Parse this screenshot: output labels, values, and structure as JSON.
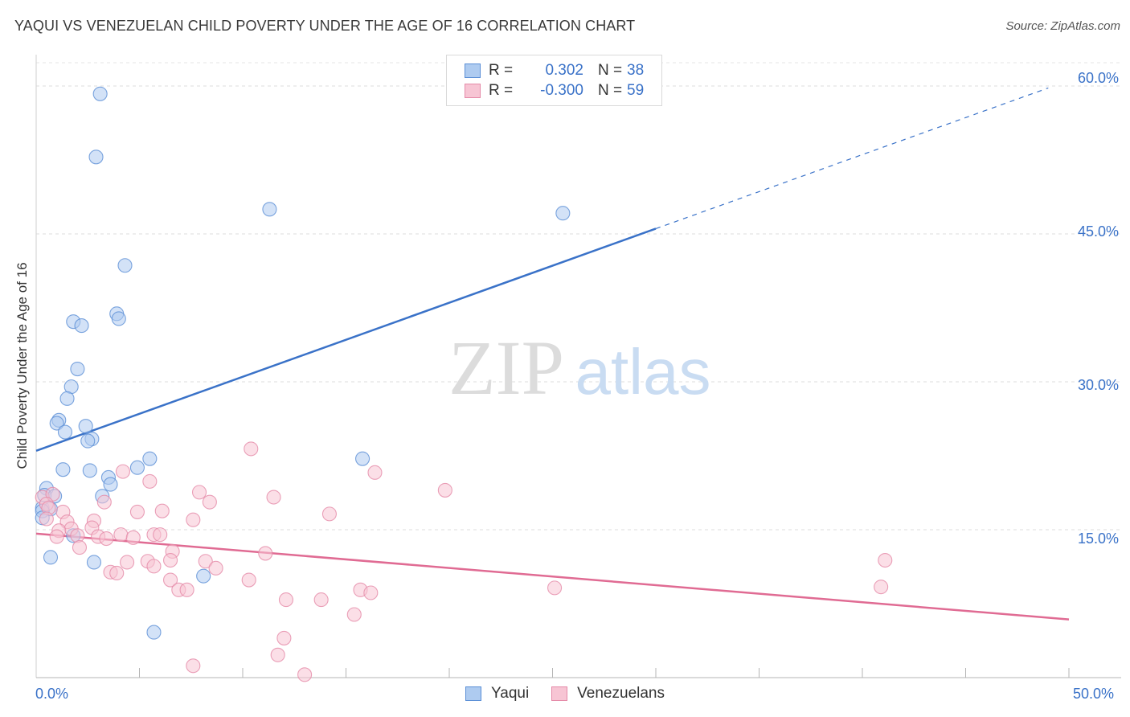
{
  "title": "YAQUI VS VENEZUELAN CHILD POVERTY UNDER THE AGE OF 16 CORRELATION CHART",
  "source": "Source: ZipAtlas.com",
  "watermark": {
    "zip": "ZIP",
    "atlas": "atlas"
  },
  "legend_top": {
    "rows": [
      {
        "r_label": "R =",
        "r_value": "0.302",
        "n_label": "N =",
        "n_value": "38",
        "color": "#aecbf0",
        "border": "#5b8fd6"
      },
      {
        "r_label": "R =",
        "r_value": "-0.300",
        "n_label": "N =",
        "n_value": "59",
        "color": "#f7c5d4",
        "border": "#e58aa8"
      }
    ]
  },
  "legend_bottom": {
    "items": [
      {
        "label": "Yaqui",
        "color": "#aecbf0",
        "border": "#5b8fd6"
      },
      {
        "label": "Venezuelans",
        "color": "#f7c5d4",
        "border": "#e58aa8"
      }
    ]
  },
  "axes": {
    "x_min_label": "0.0%",
    "x_max_label": "50.0%",
    "y_tick_labels": [
      "15.0%",
      "30.0%",
      "45.0%",
      "60.0%"
    ]
  },
  "chart_data": {
    "type": "scatter",
    "title": "YAQUI VS VENEZUELAN CHILD POVERTY UNDER THE AGE OF 16 CORRELATION CHART",
    "xlabel": "",
    "ylabel": "Child Poverty Under the Age of 16",
    "xlim": [
      0,
      50
    ],
    "ylim": [
      0,
      60
    ],
    "y_ticks": [
      15,
      30,
      45,
      60
    ],
    "grid": true,
    "series": [
      {
        "name": "Yaqui",
        "color": "#5b8fd6",
        "fill": "#aecbf0",
        "points": [
          [
            3.1,
            59.2
          ],
          [
            2.9,
            52.8
          ],
          [
            11.3,
            47.5
          ],
          [
            25.5,
            47.1
          ],
          [
            4.3,
            41.8
          ],
          [
            3.9,
            36.9
          ],
          [
            4.0,
            36.4
          ],
          [
            1.8,
            36.1
          ],
          [
            2.2,
            35.7
          ],
          [
            2.0,
            31.3
          ],
          [
            1.7,
            29.5
          ],
          [
            1.5,
            28.3
          ],
          [
            1.1,
            26.1
          ],
          [
            1.0,
            25.8
          ],
          [
            2.4,
            25.5
          ],
          [
            1.4,
            24.9
          ],
          [
            2.7,
            24.2
          ],
          [
            2.5,
            24.0
          ],
          [
            5.5,
            22.2
          ],
          [
            15.8,
            22.2
          ],
          [
            4.9,
            21.3
          ],
          [
            1.3,
            21.1
          ],
          [
            2.6,
            21.0
          ],
          [
            3.5,
            20.3
          ],
          [
            3.6,
            19.6
          ],
          [
            0.5,
            19.2
          ],
          [
            0.4,
            18.5
          ],
          [
            0.9,
            18.4
          ],
          [
            3.2,
            18.4
          ],
          [
            0.3,
            17.2
          ],
          [
            0.7,
            17.1
          ],
          [
            0.3,
            16.9
          ],
          [
            0.3,
            16.2
          ],
          [
            1.8,
            14.4
          ],
          [
            0.7,
            12.2
          ],
          [
            2.8,
            11.7
          ],
          [
            8.1,
            10.3
          ],
          [
            5.7,
            4.6
          ]
        ]
      },
      {
        "name": "Venezuelans",
        "color": "#e58aa8",
        "fill": "#f7c5d4",
        "points": [
          [
            10.4,
            23.2
          ],
          [
            4.2,
            20.9
          ],
          [
            16.4,
            20.8
          ],
          [
            5.5,
            19.9
          ],
          [
            19.8,
            19.0
          ],
          [
            7.9,
            18.8
          ],
          [
            0.3,
            18.3
          ],
          [
            0.8,
            18.6
          ],
          [
            11.5,
            18.3
          ],
          [
            3.3,
            17.8
          ],
          [
            8.4,
            17.8
          ],
          [
            0.5,
            17.6
          ],
          [
            0.6,
            17.2
          ],
          [
            1.3,
            16.8
          ],
          [
            6.1,
            16.9
          ],
          [
            4.9,
            16.8
          ],
          [
            14.2,
            16.6
          ],
          [
            0.5,
            16.1
          ],
          [
            7.6,
            16.0
          ],
          [
            2.8,
            15.9
          ],
          [
            1.5,
            15.8
          ],
          [
            1.7,
            15.1
          ],
          [
            2.7,
            15.2
          ],
          [
            1.1,
            14.9
          ],
          [
            1.0,
            14.3
          ],
          [
            2.0,
            14.4
          ],
          [
            4.1,
            14.5
          ],
          [
            5.7,
            14.5
          ],
          [
            6.0,
            14.5
          ],
          [
            3.0,
            14.3
          ],
          [
            3.4,
            14.1
          ],
          [
            4.7,
            14.2
          ],
          [
            2.1,
            13.2
          ],
          [
            6.6,
            12.8
          ],
          [
            11.1,
            12.6
          ],
          [
            4.4,
            11.7
          ],
          [
            5.4,
            11.8
          ],
          [
            6.5,
            11.9
          ],
          [
            8.2,
            11.8
          ],
          [
            8.7,
            11.1
          ],
          [
            5.7,
            11.3
          ],
          [
            41.1,
            11.9
          ],
          [
            3.6,
            10.7
          ],
          [
            3.9,
            10.6
          ],
          [
            6.5,
            9.9
          ],
          [
            10.3,
            9.9
          ],
          [
            6.9,
            8.9
          ],
          [
            7.3,
            8.9
          ],
          [
            15.7,
            8.9
          ],
          [
            16.2,
            8.6
          ],
          [
            25.1,
            9.1
          ],
          [
            40.9,
            9.2
          ],
          [
            12.1,
            7.9
          ],
          [
            13.8,
            7.9
          ],
          [
            15.4,
            6.4
          ],
          [
            12.0,
            4.0
          ],
          [
            11.7,
            2.3
          ],
          [
            7.6,
            1.2
          ],
          [
            13.0,
            0.3
          ]
        ]
      }
    ],
    "trendlines": [
      {
        "series": "Yaqui",
        "color": "#3a72c8",
        "x_start": 0,
        "y_start": 23.0,
        "x_solid_end": 30,
        "x_end": 49.0,
        "y_end": 59.8,
        "dashed_after": 30
      },
      {
        "series": "Venezuelans",
        "color": "#e06b93",
        "x_start": 0,
        "y_start": 14.6,
        "x_end": 50,
        "y_end": 5.9
      }
    ]
  }
}
